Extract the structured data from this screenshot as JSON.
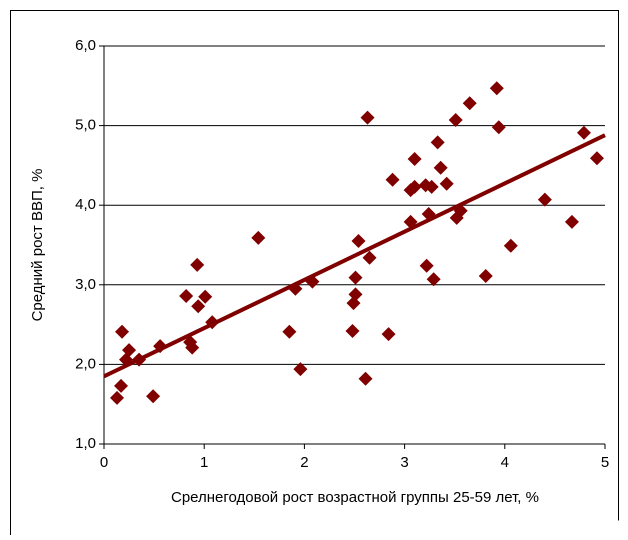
{
  "chart_data": {
    "type": "scatter",
    "xlabel": "Срелнегодовой рост возрастной группы 25-59 лет, %",
    "ylabel": "Средний рост ВВП, %",
    "series": [
      {
        "color": "#800000",
        "x": [
          0.13,
          0.17,
          0.18,
          0.22,
          0.25,
          0.35,
          0.49,
          0.56,
          0.82,
          0.86,
          0.88,
          0.93,
          0.94,
          1.01,
          1.08,
          1.54,
          1.85,
          1.91,
          1.96,
          2.08,
          2.48,
          2.49,
          2.51,
          2.51,
          2.54,
          2.61,
          2.63,
          2.65,
          2.84,
          2.88,
          3.06,
          3.06,
          3.1,
          3.1,
          3.21,
          3.22,
          3.24,
          3.27,
          3.29,
          3.33,
          3.36,
          3.42,
          3.51,
          3.52,
          3.56,
          3.65,
          3.81,
          3.92,
          3.94,
          4.06,
          4.4,
          4.67,
          4.79,
          4.92
        ],
        "values": [
          1.58,
          1.73,
          2.41,
          2.06,
          2.18,
          2.06,
          1.6,
          2.23,
          2.86,
          2.28,
          2.21,
          3.25,
          2.73,
          2.85,
          2.53,
          3.59,
          2.41,
          2.95,
          1.94,
          3.04,
          2.42,
          2.77,
          3.09,
          2.88,
          3.55,
          1.82,
          5.1,
          3.34,
          2.38,
          4.32,
          4.19,
          3.79,
          4.58,
          4.23,
          4.25,
          3.24,
          3.89,
          4.23,
          3.07,
          4.79,
          4.47,
          4.27,
          5.07,
          3.84,
          3.93,
          5.28,
          3.11,
          5.47,
          4.98,
          3.49,
          4.07,
          3.79,
          4.91,
          4.59
        ]
      }
    ],
    "trendline": {
      "color": "#800000",
      "x": [
        0,
        5
      ],
      "values": [
        1.85,
        4.88
      ]
    },
    "xlim": [
      0,
      5
    ],
    "xticks": [
      0,
      1,
      2,
      3,
      4,
      5
    ],
    "ylim": [
      1,
      6
    ],
    "yticks": [
      {
        "value": 1,
        "label": "1,0"
      },
      {
        "value": 2,
        "label": "2,0"
      },
      {
        "value": 3,
        "label": "3,0"
      },
      {
        "value": 4,
        "label": "4,0"
      },
      {
        "value": 5,
        "label": "5,0"
      },
      {
        "value": 6,
        "label": "6,0"
      }
    ],
    "grid": true
  }
}
